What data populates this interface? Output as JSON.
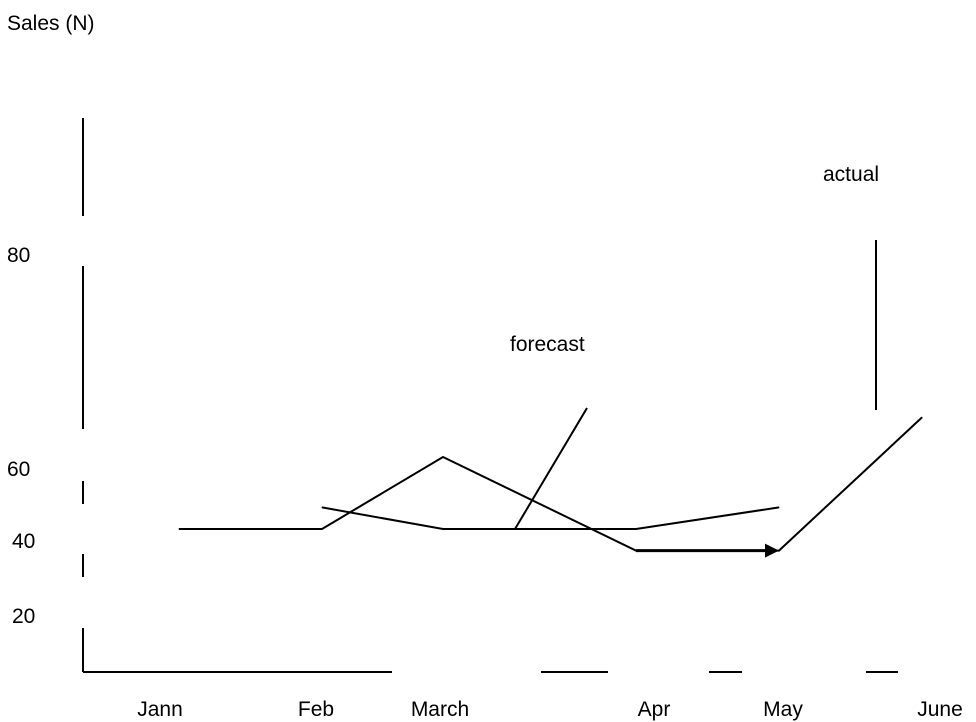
{
  "chart_data": {
    "type": "line",
    "title": "",
    "ylabel": "Sales (N)",
    "xlabel": "",
    "categories": [
      "Jann",
      "Feb",
      "March",
      "Apr",
      "May",
      "June"
    ],
    "y_ticks": [
      "80",
      "60",
      "40",
      "20"
    ],
    "series": [
      {
        "name": "forecast",
        "points": [
          {
            "x": "Feb",
            "y": 46
          },
          {
            "x": "March",
            "y": 40
          },
          {
            "x": "Apr",
            "y": 40
          },
          {
            "x": "May",
            "y": 46
          }
        ]
      },
      {
        "name": "actual",
        "points": [
          {
            "x": "Jann",
            "y": 40
          },
          {
            "x": "Feb",
            "y": 40
          },
          {
            "x": "March",
            "y": 60
          },
          {
            "x": "Apr",
            "y": 34
          },
          {
            "x": "May",
            "y": 34
          },
          {
            "x": "June",
            "y": 71
          }
        ]
      }
    ],
    "annotations": [
      {
        "text": "forecast",
        "target_series": "forecast"
      },
      {
        "text": "actual",
        "target_series": "actual"
      }
    ],
    "grid": false,
    "legend": "none",
    "colors": {
      "line": "#000000",
      "background": "#ffffff"
    }
  }
}
